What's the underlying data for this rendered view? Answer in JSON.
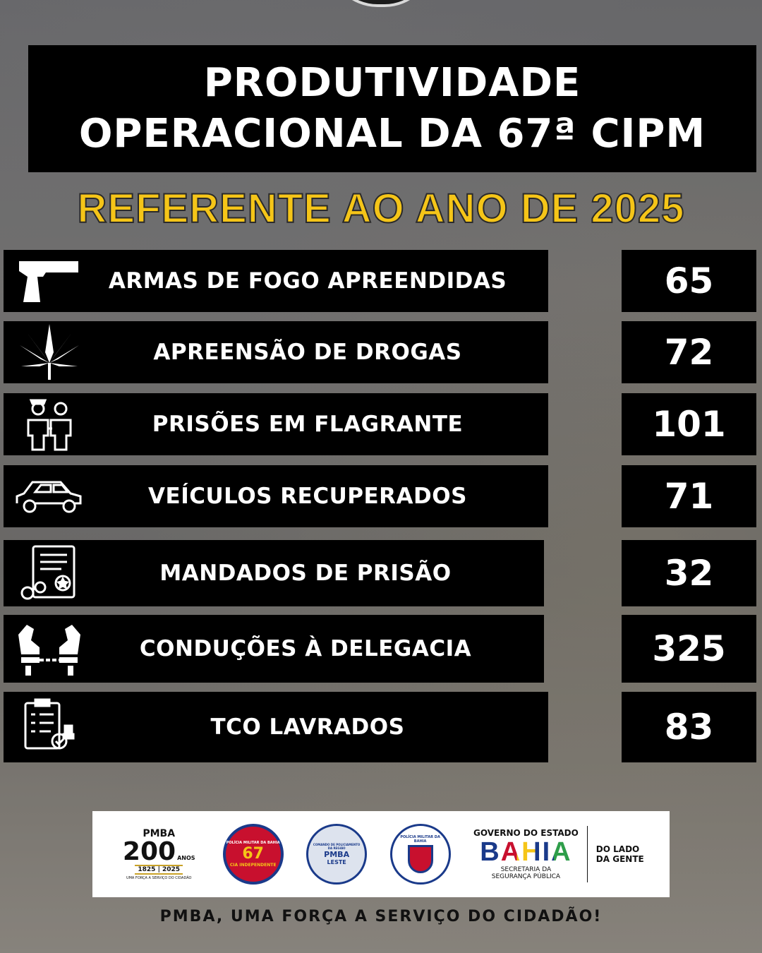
{
  "header": {
    "title_line1": "PRODUTIVIDADE",
    "title_line2": "OPERACIONAL DA 67ª CIPM",
    "subtitle": "REFERENTE AO ANO DE 2025"
  },
  "stats": [
    {
      "label": "ARMAS DE FOGO APREENDIDAS",
      "value": "65",
      "icon": "pistol-icon"
    },
    {
      "label": "APREENSÃO DE DROGAS",
      "value": "72",
      "icon": "cannabis-leaf-icon"
    },
    {
      "label": "PRISÕES EM FLAGRANTE",
      "value": "101",
      "icon": "police-arrest-icon"
    },
    {
      "label": "VEÍCULOS RECUPERADOS",
      "value": "71",
      "icon": "car-icon"
    },
    {
      "label": "MANDADOS DE PRISÃO",
      "value": "32",
      "icon": "warrant-document-icon"
    },
    {
      "label": "CONDUÇÕES À DELEGACIA",
      "value": "325",
      "icon": "handcuffed-hands-icon"
    },
    {
      "label": "TCO LAVRADOS",
      "value": "83",
      "icon": "checklist-stamp-icon"
    }
  ],
  "logos": {
    "pmba200": {
      "top": "PMBA",
      "number": "200",
      "years": "ANOS",
      "range": "1825 | 2025",
      "tagline": "UMA FORÇA A SERVIÇO DO CIDADÃO"
    },
    "cia": {
      "ring": "POLÍCIA MILITAR DA BAHIA",
      "number": "67",
      "bottom": "CIA INDEPENDENTE"
    },
    "comando": {
      "ring": "COMANDO DE POLICIAMENTO DA REGIÃO",
      "center": "PMBA",
      "bottom": "LESTE"
    },
    "pm": {
      "ring": "POLÍCIA MILITAR DA BAHIA"
    },
    "governo": {
      "top": "GOVERNO DO ESTADO",
      "name": "BAHIA",
      "secretaria": "SECRETARIA DA",
      "secretaria2": "SEGURANÇA PÚBLICA",
      "slogan1": "DO LADO",
      "slogan2": "DA GENTE"
    }
  },
  "footer": "PMBA, UMA FORÇA A SERVIÇO DO CIDADÃO!",
  "colors": {
    "accent": "#f5c518",
    "box": "#000000",
    "text": "#ffffff"
  }
}
